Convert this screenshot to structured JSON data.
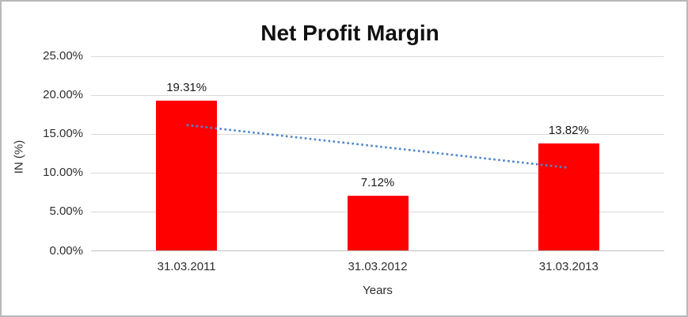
{
  "window": {
    "background": "#ffffff",
    "border_color": "#b9b9b9"
  },
  "chart_data": {
    "type": "bar",
    "title": "Net Profit Margin",
    "xlabel": "Years",
    "ylabel": "IN (%)",
    "categories": [
      "31.03.2011",
      "31.03.2012",
      "31.03.2013"
    ],
    "values": [
      19.31,
      7.12,
      13.82
    ],
    "data_labels": [
      "19.31%",
      "7.12%",
      "13.82%"
    ],
    "y_ticks": [
      {
        "label": "25.00%",
        "value": 25
      },
      {
        "label": "20.00%",
        "value": 20
      },
      {
        "label": "15.00%",
        "value": 15
      },
      {
        "label": "10.00%",
        "value": 10
      },
      {
        "label": "5.00%",
        "value": 5
      },
      {
        "label": "0.00%",
        "value": 0
      }
    ],
    "ylim": [
      0,
      25
    ],
    "grid": true,
    "legend": "none",
    "bar_color": "#ff0000",
    "gridline_color": "#d9d9d9",
    "axis_line_color": "#bfbfbf",
    "trendline": {
      "type": "linear",
      "style": "dotted",
      "color": "#4e86c8",
      "start_value": 16.16,
      "end_value": 10.67
    }
  }
}
